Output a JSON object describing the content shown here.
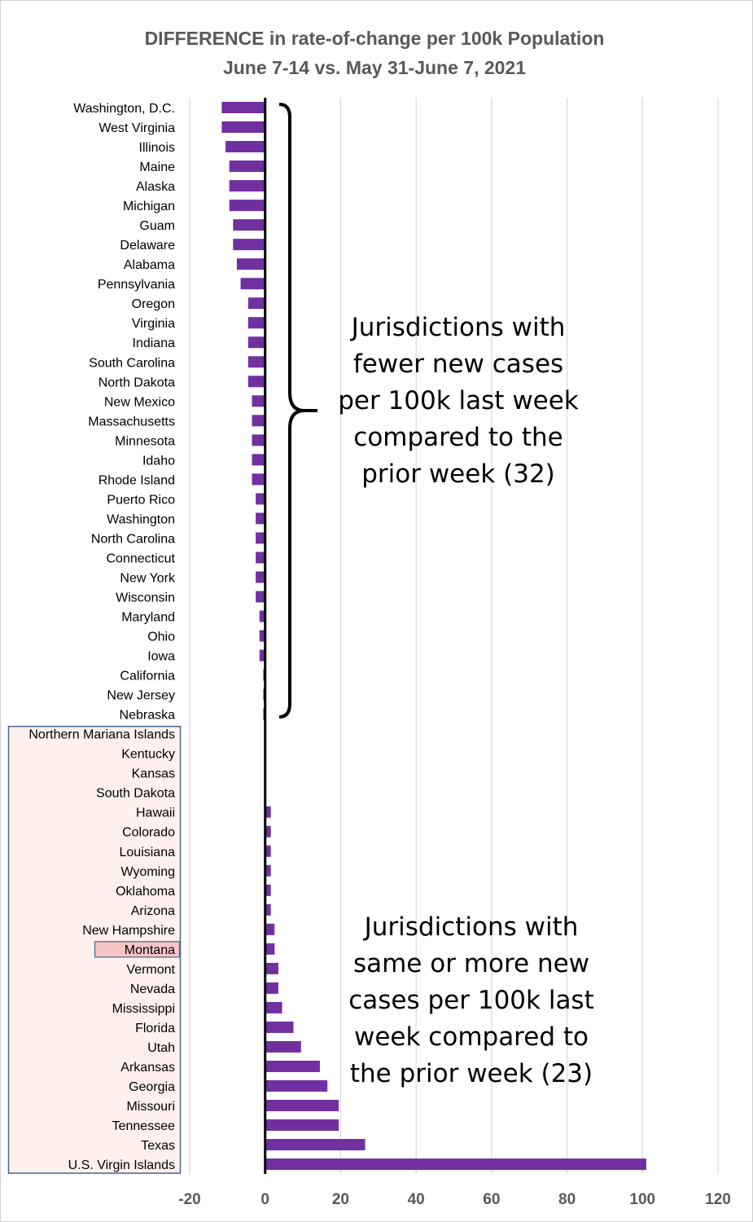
{
  "colors": {
    "bar": "#7030A0",
    "grid": "#d9d9d9",
    "axis": "#000000",
    "highlight_box_fill": "#fdf0ed",
    "highlight_box_border": "#44678f",
    "montana_fill": "#f6c4c4"
  },
  "chart_data": {
    "type": "bar",
    "orientation": "horizontal",
    "title": [
      "DIFFERENCE in rate-of-change per 100k Population",
      "June 7-14 vs. May 31-June 7, 2021"
    ],
    "xlim": [
      -20,
      120
    ],
    "xticks": [
      -20,
      0,
      20,
      40,
      60,
      80,
      100,
      120
    ],
    "grid": "vertical",
    "highlighted_category": "Montana",
    "categories": [
      "Washington, D.C.",
      "West Virginia",
      "Illinois",
      "Maine",
      "Alaska",
      "Michigan",
      "Guam",
      "Delaware",
      "Alabama",
      "Pennsylvania",
      "Oregon",
      "Virginia",
      "Indiana",
      "South Carolina",
      "North Dakota",
      "New Mexico",
      "Massachusetts",
      "Minnesota",
      "Idaho",
      "Rhode Island",
      "Puerto Rico",
      "Washington",
      "North Carolina",
      "Connecticut",
      "New York",
      "Wisconsin",
      "Maryland",
      "Ohio",
      "Iowa",
      "California",
      "New Jersey",
      "Nebraska",
      "Northern Mariana Islands",
      "Kentucky",
      "Kansas",
      "South Dakota",
      "Hawaii",
      "Colorado",
      "Louisiana",
      "Wyoming",
      "Oklahoma",
      "Arizona",
      "New Hampshire",
      "Montana",
      "Vermont",
      "Nevada",
      "Mississippi",
      "Florida",
      "Utah",
      "Arkansas",
      "Georgia",
      "Missouri",
      "Tennessee",
      "Texas",
      "U.S. Virgin Islands"
    ],
    "values": [
      -11.5,
      -11.5,
      -10.5,
      -9.5,
      -9.5,
      -9.5,
      -8.5,
      -8.5,
      -7.5,
      -6.5,
      -4.5,
      -4.5,
      -4.5,
      -4.5,
      -4.5,
      -3.5,
      -3.5,
      -3.5,
      -3.5,
      -3.5,
      -2.5,
      -2.5,
      -2.5,
      -2.5,
      -2.5,
      -2.5,
      -1.5,
      -1.5,
      -1.5,
      -0.5,
      -0.5,
      -0.5,
      0,
      0,
      0,
      0,
      1.5,
      1.5,
      1.5,
      1.5,
      1.5,
      1.5,
      2.5,
      2.5,
      3.5,
      3.5,
      4.5,
      7.5,
      9.5,
      14.5,
      16.5,
      19.5,
      19.5,
      26.5,
      101
    ],
    "annotations": [
      "Jurisdictions with fewer new cases per 100k last week compared to the prior week (32)",
      "Jurisdictions with same or more new cases per 100k last week compared to the prior week (23)"
    ]
  },
  "annotation_lines": {
    "fewer": [
      "Jurisdictions with",
      "fewer new cases",
      "per 100k last week",
      "compared to the",
      "prior week (32)"
    ],
    "more": [
      "Jurisdictions with",
      "same or more new",
      "cases per 100k last",
      "week compared to",
      "the prior week (23)"
    ]
  }
}
